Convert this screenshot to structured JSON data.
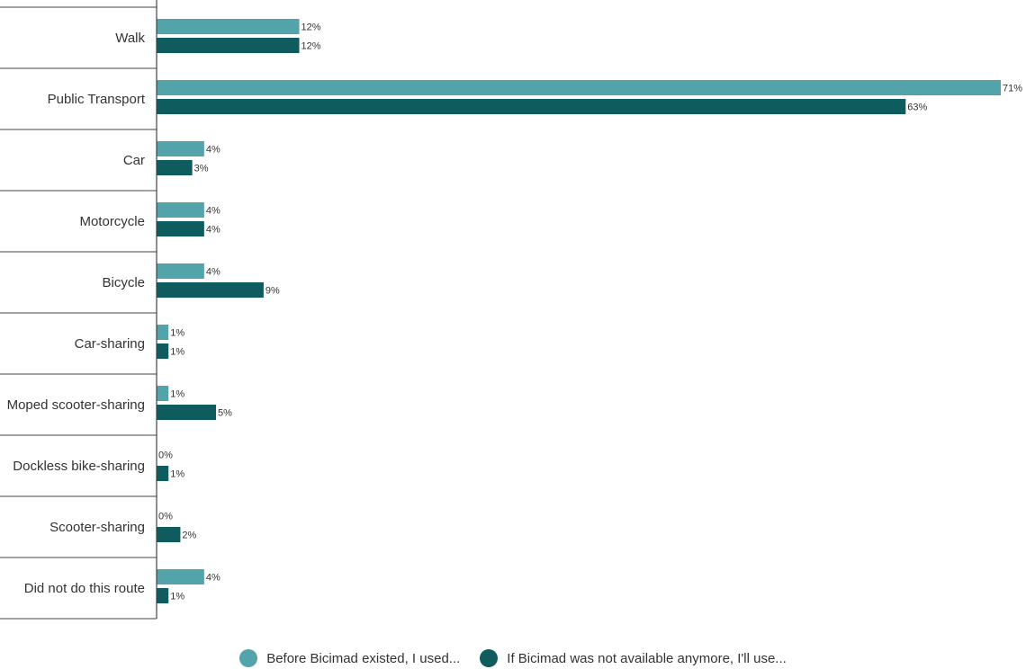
{
  "chart_data": {
    "type": "bar",
    "orientation": "horizontal",
    "categories": [
      "Walk",
      "Public Transport",
      "Car",
      "Motorcycle",
      "Bicycle",
      "Car-sharing",
      "Moped scooter-sharing",
      "Dockless bike-sharing",
      "Scooter-sharing",
      "Did not do this route"
    ],
    "series": [
      {
        "name": "Before Bicimad existed, I used...",
        "values": [
          12,
          71,
          4,
          4,
          4,
          1,
          1,
          0,
          0,
          4
        ],
        "color": "#52a3aa"
      },
      {
        "name": "If Bicimad was not available anymore, I'll use...",
        "values": [
          12,
          63,
          3,
          4,
          9,
          1,
          5,
          1,
          2,
          1
        ],
        "color": "#0f5c5e"
      }
    ],
    "value_suffix": "%",
    "xlim": [
      0,
      71
    ],
    "title": "",
    "xlabel": "",
    "ylabel": "",
    "grid": false,
    "legend_position": "bottom-center"
  }
}
